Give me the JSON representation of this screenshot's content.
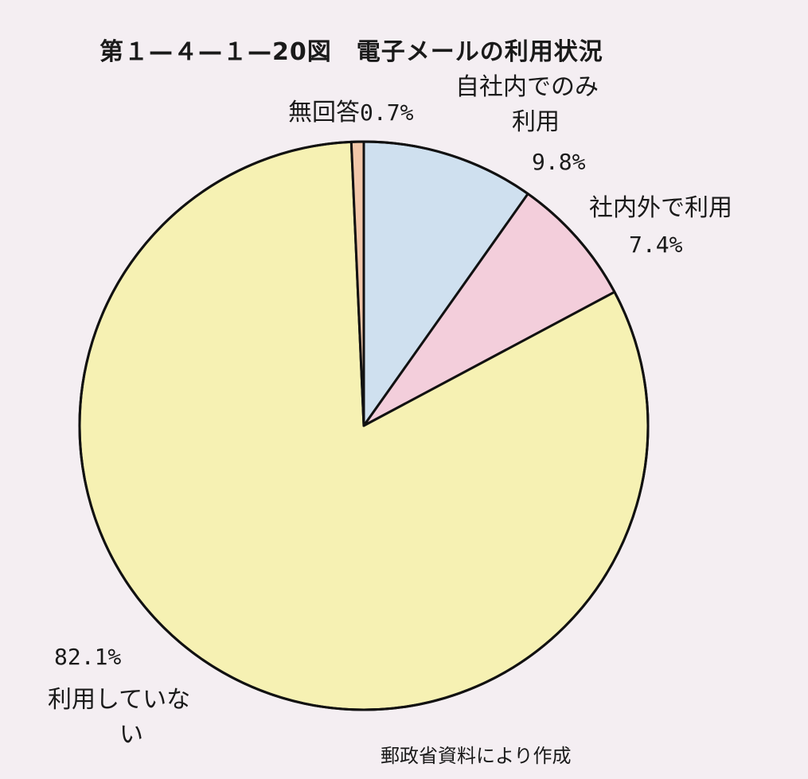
{
  "title": "第１—４—１—20図　電子メールの利用状況",
  "source": "郵政省資料により作成",
  "chart_data": {
    "type": "pie",
    "title": "第１—４—１—20図　電子メールの利用状況",
    "start_angle_deg": 0,
    "direction": "clockwise",
    "slices": [
      {
        "label_lines": [
          "自社内でのみ",
          "利用"
        ],
        "value": 9.8,
        "value_label": "9.8%",
        "color": "#cfe0ef"
      },
      {
        "label_lines": [
          "社内外で利用"
        ],
        "value": 7.4,
        "value_label": "7.4%",
        "color": "#f3cedb"
      },
      {
        "label_lines": [
          "利用していな",
          "い"
        ],
        "value": 82.1,
        "value_label": "82.1%",
        "color": "#f6f1b3"
      },
      {
        "label_lines": [
          "無回答"
        ],
        "value": 0.7,
        "value_label": "0.7%",
        "color": "#f2c7a9"
      }
    ]
  }
}
